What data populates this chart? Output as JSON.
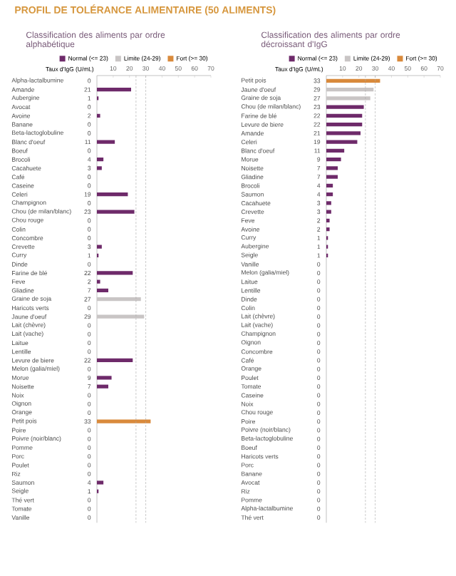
{
  "chart_data": [
    {
      "type": "bar",
      "orientation": "horizontal",
      "title": "PROFIL DE TOLÉRANCE ALIMENTAIRE (50 ALIMENTS)",
      "subtitle": "Classification des aliments par ordre alphabétique",
      "xlabel": "Taux d'IgG (U/mL)",
      "categories": [
        "Alpha-lactalbumine",
        "Amande",
        "Aubergine",
        "Avocat",
        "Avoine",
        "Banane",
        "Beta-lactoglobuline",
        "Blanc d'oeuf",
        "Boeuf",
        "Brocoli",
        "Cacahuete",
        "Café",
        "Caseine",
        "Celeri",
        "Champignon",
        "Chou (de milan/blanc)",
        "Chou rouge",
        "Colin",
        "Concombre",
        "Crevette",
        "Curry",
        "Dinde",
        "Farine de blé",
        "Feve",
        "Gliadine",
        "Graine de soja",
        "Haricots verts",
        "Jaune d'oeuf",
        "Lait (chèvre)",
        "Lait (vache)",
        "Laitue",
        "Lentille",
        "Levure de biere",
        "Melon (galia/miel)",
        "Morue",
        "Noisette",
        "Noix",
        "Oignon",
        "Orange",
        "Petit pois",
        "Poire",
        "Poivre (noir/blanc)",
        "Pomme",
        "Porc",
        "Poulet",
        "Riz",
        "Saumon",
        "Seigle",
        "Thé vert",
        "Tomate",
        "Vanille"
      ],
      "series": [
        {
          "name": "Normal (<= 23)",
          "color": "#6e2a6a",
          "values": [
            0,
            21,
            1,
            0,
            2,
            0,
            0,
            11,
            0,
            4,
            3,
            0,
            0,
            19,
            0,
            23,
            0,
            0,
            0,
            3,
            1,
            0,
            22,
            2,
            7,
            null,
            0,
            null,
            0,
            0,
            0,
            0,
            22,
            0,
            9,
            7,
            0,
            0,
            0,
            null,
            0,
            0,
            0,
            0,
            0,
            0,
            4,
            1,
            0,
            0,
            0
          ]
        },
        {
          "name": "Limite (24-29)",
          "color": "#c9c5c5",
          "values": [
            null,
            null,
            null,
            null,
            null,
            null,
            null,
            null,
            null,
            null,
            null,
            null,
            null,
            null,
            null,
            null,
            null,
            null,
            null,
            null,
            null,
            null,
            null,
            null,
            null,
            27,
            null,
            29,
            null,
            null,
            null,
            null,
            null,
            null,
            null,
            null,
            null,
            null,
            null,
            null,
            null,
            null,
            null,
            null,
            null,
            null,
            null,
            null,
            null,
            null,
            null
          ]
        },
        {
          "name": "Fort (>= 30)",
          "color": "#d98a3c",
          "values": [
            null,
            null,
            null,
            null,
            null,
            null,
            null,
            null,
            null,
            null,
            null,
            null,
            null,
            null,
            null,
            null,
            null,
            null,
            null,
            null,
            null,
            null,
            null,
            null,
            null,
            null,
            null,
            null,
            null,
            null,
            null,
            null,
            null,
            null,
            null,
            null,
            null,
            null,
            null,
            33,
            null,
            null,
            null,
            null,
            null,
            null,
            null,
            null,
            null,
            null,
            null
          ]
        }
      ],
      "xlim": [
        0,
        70
      ],
      "xticks": [
        10,
        20,
        30,
        40,
        50,
        60,
        70
      ],
      "legend": "top",
      "data_labels": true,
      "ref_lines": [
        {
          "axis": "x",
          "value": 24,
          "color": "#aaaaaa",
          "line_style": "dashed"
        },
        {
          "axis": "x",
          "value": 30,
          "color": "#aaaaaa",
          "line_style": "dashed"
        }
      ]
    },
    {
      "type": "bar",
      "orientation": "horizontal",
      "title": "Classification des aliments par ordre décroissant d'IgG",
      "xlabel": "Taux d'IgG (U/mL)",
      "categories": [
        "Petit pois",
        "Jaune d'oeuf",
        "Graine de soja",
        "Chou (de milan/blanc)",
        "Farine de blé",
        "Levure de biere",
        "Amande",
        "Celeri",
        "Blanc d'oeuf",
        "Morue",
        "Noisette",
        "Gliadine",
        "Brocoli",
        "Saumon",
        "Cacahuete",
        "Crevette",
        "Feve",
        "Avoine",
        "Curry",
        "Aubergine",
        "Seigle",
        "Vanille",
        "Melon (galia/miel)",
        "Laitue",
        "Lentille",
        "Dinde",
        "Colin",
        "Lait (chèvre)",
        "Lait (vache)",
        "Champignon",
        "Oignon",
        "Concombre",
        "Café",
        "Orange",
        "Poulet",
        "Tomate",
        "Caseine",
        "Noix",
        "Chou rouge",
        "Poire",
        "Poivre (noir/blanc)",
        "Beta-lactoglobuline",
        "Boeuf",
        "Haricots verts",
        "Porc",
        "Banane",
        "Avocat",
        "Riz",
        "Pomme",
        "Alpha-lactalbumine",
        "Thé vert"
      ],
      "series": [
        {
          "name": "Normal (<= 23)",
          "color": "#6e2a6a",
          "values": [
            null,
            null,
            null,
            23,
            22,
            22,
            21,
            19,
            11,
            9,
            7,
            7,
            4,
            4,
            3,
            3,
            2,
            2,
            1,
            1,
            1,
            0,
            0,
            0,
            0,
            0,
            0,
            0,
            0,
            0,
            0,
            0,
            0,
            0,
            0,
            0,
            0,
            0,
            0,
            0,
            0,
            0,
            0,
            0,
            0,
            0,
            0,
            0,
            0,
            0,
            0
          ]
        },
        {
          "name": "Limite (24-29)",
          "color": "#c9c5c5",
          "values": [
            null,
            29,
            27,
            null,
            null,
            null,
            null,
            null,
            null,
            null,
            null,
            null,
            null,
            null,
            null,
            null,
            null,
            null,
            null,
            null,
            null,
            null,
            null,
            null,
            null,
            null,
            null,
            null,
            null,
            null,
            null,
            null,
            null,
            null,
            null,
            null,
            null,
            null,
            null,
            null,
            null,
            null,
            null,
            null,
            null,
            null,
            null,
            null,
            null,
            null,
            null
          ]
        },
        {
          "name": "Fort (>= 30)",
          "color": "#d98a3c",
          "values": [
            33,
            null,
            null,
            null,
            null,
            null,
            null,
            null,
            null,
            null,
            null,
            null,
            null,
            null,
            null,
            null,
            null,
            null,
            null,
            null,
            null,
            null,
            null,
            null,
            null,
            null,
            null,
            null,
            null,
            null,
            null,
            null,
            null,
            null,
            null,
            null,
            null,
            null,
            null,
            null,
            null,
            null,
            null,
            null,
            null,
            null,
            null,
            null,
            null,
            null,
            null
          ]
        }
      ],
      "xlim": [
        0,
        70
      ],
      "xticks": [
        10,
        20,
        30,
        40,
        50,
        60,
        70
      ],
      "legend": "top",
      "data_labels": true,
      "ref_lines": [
        {
          "axis": "x",
          "value": 24,
          "color": "#aaaaaa",
          "line_style": "dashed"
        },
        {
          "axis": "x",
          "value": 30,
          "color": "#aaaaaa",
          "line_style": "dashed"
        }
      ]
    }
  ]
}
